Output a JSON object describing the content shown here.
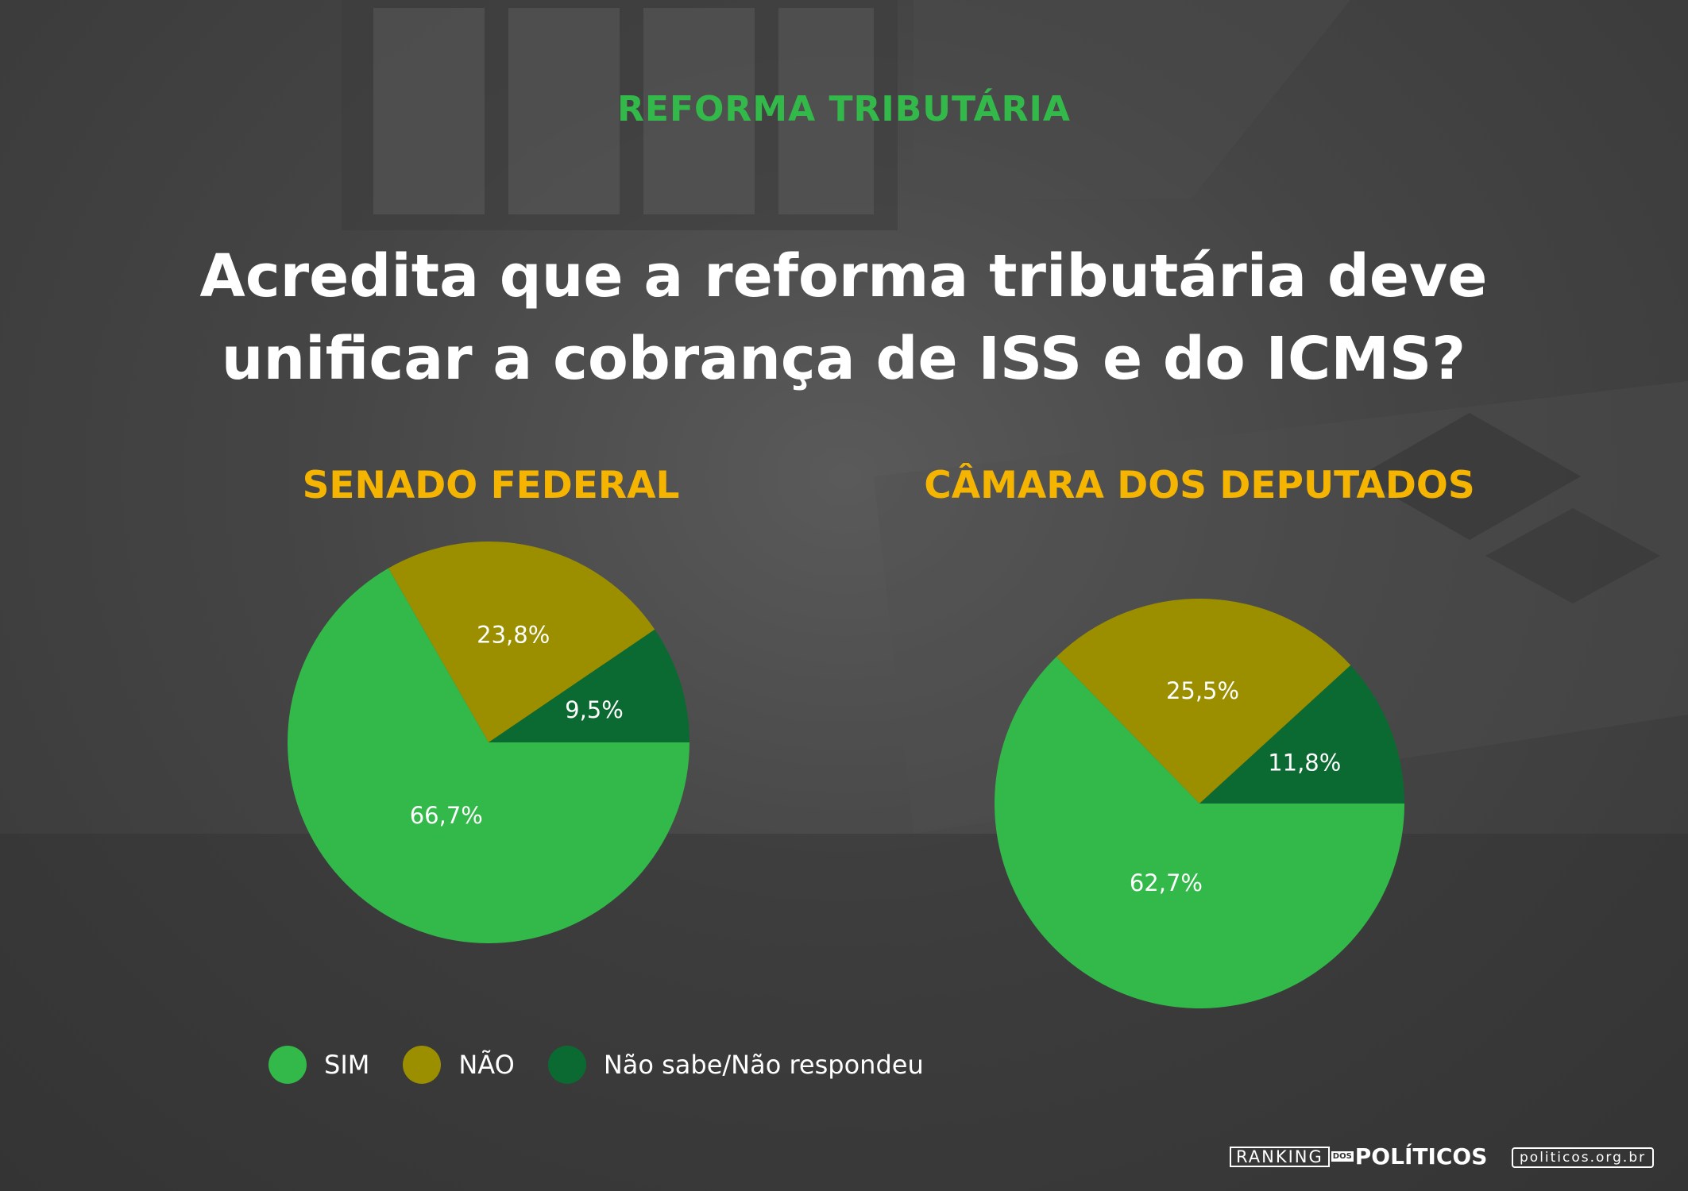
{
  "header": {
    "kicker": "REFORMA TRIBUTÁRIA",
    "question_line1": "Acredita que a reforma tributária deve",
    "question_line2": "unificar a cobrança de ISS e do ICMS?"
  },
  "colors": {
    "sim": "#33b84a",
    "nao": "#9b8f00",
    "ns_nr": "#0b6a31",
    "kicker": "#33b84a",
    "chart_title": "#f5b400"
  },
  "chart_data": [
    {
      "type": "pie",
      "title": "SENADO FEDERAL",
      "categories": [
        "SIM",
        "NÃO",
        "Não sabe/Não respondeu"
      ],
      "values": [
        66.7,
        23.8,
        9.5
      ],
      "labels": [
        "66,7%",
        "23,8%",
        "9,5%"
      ]
    },
    {
      "type": "pie",
      "title": "CÂMARA DOS DEPUTADOS",
      "categories": [
        "SIM",
        "NÃO",
        "Não sabe/Não respondeu"
      ],
      "values": [
        62.7,
        25.5,
        11.8
      ],
      "labels": [
        "62,7%",
        "25,5%",
        "11,8%"
      ]
    }
  ],
  "legend": {
    "placement": "bottom-left",
    "items": [
      {
        "label": "SIM",
        "color": "#33b84a"
      },
      {
        "label": "NÃO",
        "color": "#9b8f00"
      },
      {
        "label": "Não sabe/Não respondeu",
        "color": "#0b6a31"
      }
    ]
  },
  "footer": {
    "logo_ranking": "RANKING",
    "logo_dos": "DOS",
    "logo_politicos": "POLÍTICOS",
    "url": "politicos.org.br"
  }
}
